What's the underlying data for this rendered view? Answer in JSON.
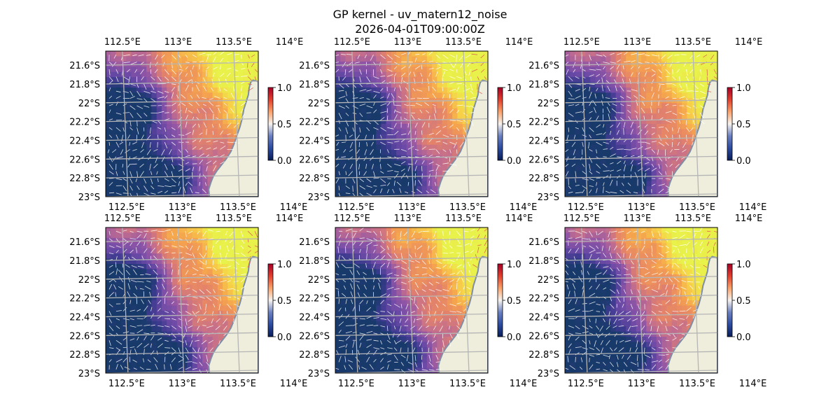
{
  "figure": {
    "title": "GP kernel - uv_matern12_noise",
    "subtitle": "2026-04-01T09:00:00Z"
  },
  "chart_data": {
    "type": "heatmap",
    "layout": "2x3 grid of identical map panels with colorbars",
    "overlay": "quiver arrows (white, red near coast) and lat/lon gridlines",
    "lon_range": [
      112.35,
      113.72
    ],
    "lat_range": [
      -23.0,
      -21.45
    ],
    "lon_ticks": [
      "112.5°E",
      "113°E",
      "113.5°E",
      "114°E"
    ],
    "lon_tick_values": [
      112.5,
      113.0,
      113.5,
      114.0
    ],
    "lat_ticks": [
      "21.6°S",
      "21.8°S",
      "22°S",
      "22.2°S",
      "22.4°S",
      "22.6°S",
      "22.8°S",
      "23°S"
    ],
    "lat_tick_values": [
      -21.6,
      -21.8,
      -22.0,
      -22.2,
      -22.4,
      -22.6,
      -22.8,
      -23.0
    ],
    "colorbar": {
      "ticks": [
        "0.0",
        "0.5",
        "1.0"
      ],
      "tick_values": [
        0.0,
        0.5,
        1.0
      ],
      "range": [
        0.0,
        1.0
      ],
      "colors": [
        "#081d58",
        "#2c4ba0",
        "#6a7fc0",
        "#f7f3ee",
        "#f9a26c",
        "#e0402f",
        "#a50026"
      ]
    },
    "heat_colors": [
      "#173a6a",
      "#3b3a8e",
      "#6b4aa6",
      "#8f55a6",
      "#c26d8e",
      "#e58468",
      "#f5a34e",
      "#f7d148",
      "#e8f24a"
    ],
    "land_color": "#efeedd",
    "coast_color": "#7f8ea6",
    "ocean_edge_color": "#9cb3d4",
    "grid_color": "#b5b5b5",
    "panels": [
      {
        "row": 0,
        "col": 0
      },
      {
        "row": 0,
        "col": 1
      },
      {
        "row": 0,
        "col": 2
      },
      {
        "row": 1,
        "col": 0
      },
      {
        "row": 1,
        "col": 1
      },
      {
        "row": 1,
        "col": 2
      }
    ]
  }
}
